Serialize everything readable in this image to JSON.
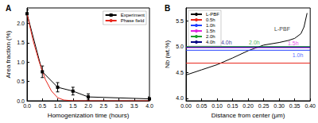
{
  "chart_data": [
    {
      "type": "line",
      "title": "A",
      "x_label": "Homogenization time (hours)",
      "y_label": "Area fraction (%)",
      "xlim": [
        0,
        4.0
      ],
      "xticks": [
        {
          "value": 0,
          "label": "0.0"
        },
        {
          "value": 0.5,
          "label": "0.5"
        },
        {
          "value": 1.0,
          "label": "1.0"
        },
        {
          "value": 1.5,
          "label": "1.5"
        },
        {
          "value": 2.0,
          "label": "2.0"
        },
        {
          "value": 2.5,
          "label": "2.5"
        },
        {
          "value": 3.0,
          "label": "3.0"
        },
        {
          "value": 3.5,
          "label": "3.5"
        },
        {
          "value": 4.0,
          "label": "4.0"
        }
      ],
      "ylim": [
        0,
        2.4
      ],
      "yticks": [
        {
          "value": 0,
          "label": "0.0"
        },
        {
          "value": 0.5,
          "label": "0.5"
        },
        {
          "value": 1.0,
          "label": "1.0"
        },
        {
          "value": 1.5,
          "label": "1.5"
        },
        {
          "value": 2.0,
          "label": "2.0"
        }
      ],
      "grid": false,
      "legend": "upper right",
      "series": [
        {
          "name": "Experiment",
          "color": "#000000",
          "marker": "square",
          "line_style": "solid",
          "x": [
            0,
            0.5,
            1.0,
            1.5,
            2.0,
            4.0
          ],
          "values": [
            2.25,
            0.75,
            0.35,
            0.25,
            0.1,
            0.05
          ],
          "errors": [
            0.1,
            0.15,
            0.12,
            0.1,
            0.08,
            0.05
          ]
        },
        {
          "name": "Phase field",
          "color": "#e8261c",
          "marker": "none",
          "line_style": "solid",
          "x": [
            0,
            0.2,
            0.4,
            0.6,
            0.8,
            1.0,
            1.2,
            1.5,
            2.0,
            3.0,
            4.0
          ],
          "values": [
            2.25,
            1.55,
            1.0,
            0.55,
            0.25,
            0.08,
            0.02,
            0.0,
            0.0,
            0.0,
            0.0
          ]
        }
      ]
    },
    {
      "type": "line",
      "title": "B",
      "x_label": "Distance from center (μm)",
      "y_label": "Nb (wt.%)",
      "xlim": [
        0,
        0.4
      ],
      "xticks": [
        {
          "value": 0,
          "label": "0.00"
        },
        {
          "value": 0.05,
          "label": "0.05"
        },
        {
          "value": 0.1,
          "label": "0.10"
        },
        {
          "value": 0.15,
          "label": "0.15"
        },
        {
          "value": 0.2,
          "label": "0.20"
        },
        {
          "value": 0.25,
          "label": "0.25"
        },
        {
          "value": 0.3,
          "label": "0.30"
        },
        {
          "value": 0.35,
          "label": "0.35"
        },
        {
          "value": 0.4,
          "label": "0.40"
        }
      ],
      "ylim": [
        3.95,
        5.75
      ],
      "yticks": [
        {
          "value": 4.0,
          "label": "4.0"
        },
        {
          "value": 4.5,
          "label": "4.5"
        },
        {
          "value": 5.0,
          "label": "5.0"
        },
        5.5
      ],
      "grid": false,
      "legend": "upper left",
      "series": [
        {
          "name": "L-PBF",
          "color": "#000000",
          "marker": "none",
          "line_style": "solid",
          "x": [
            0,
            0.05,
            0.1,
            0.15,
            0.2,
            0.25,
            0.3,
            0.33,
            0.35,
            0.37,
            0.38,
            0.39
          ],
          "values": [
            4.45,
            4.55,
            4.65,
            4.78,
            4.92,
            5.03,
            5.08,
            5.12,
            5.16,
            5.25,
            5.38,
            5.65
          ]
        },
        {
          "name": "0.5h",
          "color": "#e8261c",
          "marker": "none",
          "line_style": "solid",
          "x": [
            0,
            0.4
          ],
          "values": [
            4.68,
            4.68
          ]
        },
        {
          "name": "1.0h",
          "color": "#1f3fff",
          "marker": "none",
          "line_style": "solid",
          "x": [
            0,
            0.4
          ],
          "values": [
            4.93,
            4.93
          ]
        },
        {
          "name": "1.5h",
          "color": "#e020e0",
          "marker": "none",
          "line_style": "solid",
          "x": [
            0,
            0.4
          ],
          "values": [
            4.98,
            4.98
          ]
        },
        {
          "name": "2.0h",
          "color": "#1a9e2a",
          "marker": "none",
          "line_style": "solid",
          "x": [
            0,
            0.4
          ],
          "values": [
            5.0,
            5.0
          ]
        },
        {
          "name": "4.0h",
          "color": "#000080",
          "marker": "none",
          "line_style": "solid",
          "x": [
            0,
            0.4
          ],
          "values": [
            4.99,
            4.99
          ]
        }
      ],
      "annotations": [
        {
          "text": "L-PBF",
          "x": 0.31,
          "y": 5.35,
          "color": "#000000"
        },
        {
          "text": "4.0h",
          "x": 0.13,
          "y": 5.08,
          "color": "#000080"
        },
        {
          "text": "2.0h",
          "x": 0.22,
          "y": 5.08,
          "color": "#1a9e2a"
        },
        {
          "text": "1.5h",
          "x": 0.345,
          "y": 5.07,
          "color": "#e020e0"
        },
        {
          "text": "1.0h",
          "x": 0.36,
          "y": 4.84,
          "color": "#1f3fff"
        }
      ]
    }
  ]
}
